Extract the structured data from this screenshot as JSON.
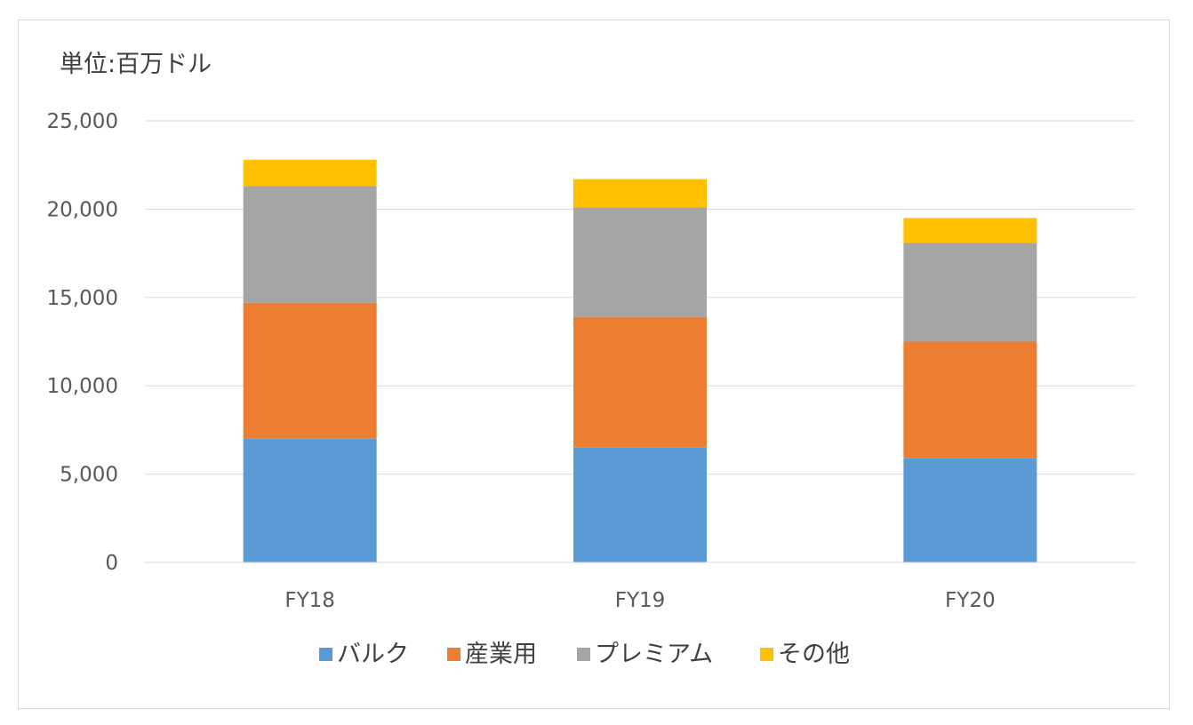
{
  "chart_data": {
    "type": "bar",
    "stacked": true,
    "unit_label": "単位:百万ドル",
    "categories": [
      "FY18",
      "FY19",
      "FY20"
    ],
    "series": [
      {
        "name": "バルク",
        "color": "#5b9bd5",
        "values": [
          7000,
          6500,
          5900
        ]
      },
      {
        "name": "産業用",
        "color": "#ed7d31",
        "values": [
          7700,
          7400,
          6600
        ]
      },
      {
        "name": "プレミアム",
        "color": "#a5a5a5",
        "values": [
          6600,
          6200,
          5600
        ]
      },
      {
        "name": "その他",
        "color": "#ffc000",
        "values": [
          1500,
          1600,
          1400
        ]
      }
    ],
    "ylim": [
      0,
      25000
    ],
    "yticks": [
      0,
      5000,
      10000,
      15000,
      20000,
      25000
    ],
    "ytick_labels": [
      "0",
      "5,000",
      "10,000",
      "15,000",
      "20,000",
      "25,000"
    ],
    "grid": true,
    "legend_position": "bottom"
  }
}
